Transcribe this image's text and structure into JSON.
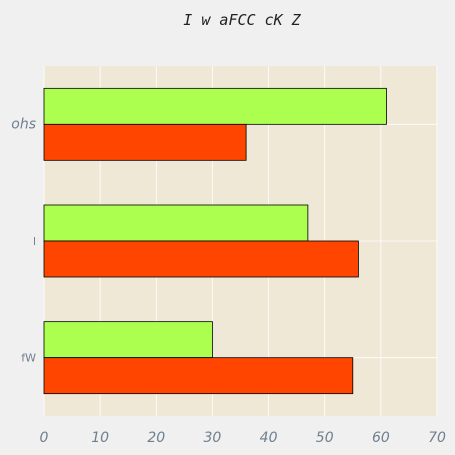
{
  "chart_data": {
    "type": "bar",
    "orientation": "horizontal",
    "title": "I w aFCC cK Z",
    "categories": [
      "ohs",
      "l",
      "fW"
    ],
    "series": [
      {
        "color": "#adff4f",
        "values": [
          61,
          47,
          30
        ]
      },
      {
        "color": "#ff4500",
        "values": [
          36,
          56,
          55
        ]
      }
    ],
    "xlim": [
      0,
      70
    ],
    "xticks": [
      "0",
      "10",
      "20",
      "30",
      "40",
      "50",
      "60",
      "70"
    ],
    "grid": true,
    "legend": "none",
    "plot_background": "#efe8d7",
    "bar_edge_color": "#000000"
  }
}
